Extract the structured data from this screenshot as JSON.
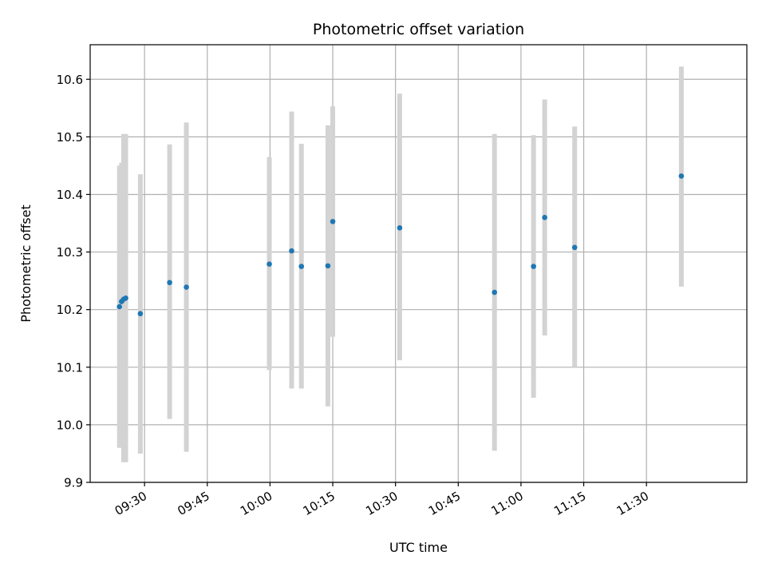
{
  "chart_data": {
    "type": "scatter",
    "title": "Photometric offset variation",
    "xlabel": "UTC time",
    "ylabel": "Photometric offset",
    "xlim": [
      "09:17",
      "11:54"
    ],
    "ylim": [
      9.9,
      10.66
    ],
    "x_ticks": [
      "09:30",
      "09:45",
      "10:00",
      "10:15",
      "10:30",
      "10:45",
      "11:00",
      "11:15",
      "11:30"
    ],
    "y_ticks": [
      "9.9",
      "10.0",
      "10.1",
      "10.2",
      "10.3",
      "10.4",
      "10.5",
      "10.6"
    ],
    "grid": true,
    "marker_color": "#1f77b4",
    "errorbar_color": "#d3d3d3",
    "points": [
      {
        "time": "09:24:00",
        "y": 10.205,
        "low": 9.96,
        "high": 10.45
      },
      {
        "time": "09:24:30",
        "y": 10.214,
        "low": 9.97,
        "high": 10.455
      },
      {
        "time": "09:25:00",
        "y": 10.218,
        "low": 9.935,
        "high": 10.505
      },
      {
        "time": "09:25:30",
        "y": 10.22,
        "low": 9.935,
        "high": 10.505
      },
      {
        "time": "09:29:00",
        "y": 10.193,
        "low": 9.95,
        "high": 10.435
      },
      {
        "time": "09:36:00",
        "y": 10.247,
        "low": 10.01,
        "high": 10.487
      },
      {
        "time": "09:40:00",
        "y": 10.239,
        "low": 9.953,
        "high": 10.525
      },
      {
        "time": "09:59:50",
        "y": 10.279,
        "low": 10.095,
        "high": 10.465
      },
      {
        "time": "10:05:10",
        "y": 10.302,
        "low": 10.063,
        "high": 10.544
      },
      {
        "time": "10:07:30",
        "y": 10.275,
        "low": 10.063,
        "high": 10.488
      },
      {
        "time": "10:13:50",
        "y": 10.276,
        "low": 10.032,
        "high": 10.52
      },
      {
        "time": "10:15:00",
        "y": 10.353,
        "low": 10.153,
        "high": 10.553
      },
      {
        "time": "10:31:00",
        "y": 10.342,
        "low": 10.112,
        "high": 10.575
      },
      {
        "time": "10:53:40",
        "y": 10.23,
        "low": 9.955,
        "high": 10.505
      },
      {
        "time": "11:03:00",
        "y": 10.275,
        "low": 10.047,
        "high": 10.503
      },
      {
        "time": "11:05:40",
        "y": 10.36,
        "low": 10.155,
        "high": 10.565
      },
      {
        "time": "11:12:50",
        "y": 10.308,
        "low": 10.1,
        "high": 10.518
      },
      {
        "time": "11:38:20",
        "y": 10.432,
        "low": 10.24,
        "high": 10.622
      }
    ]
  }
}
